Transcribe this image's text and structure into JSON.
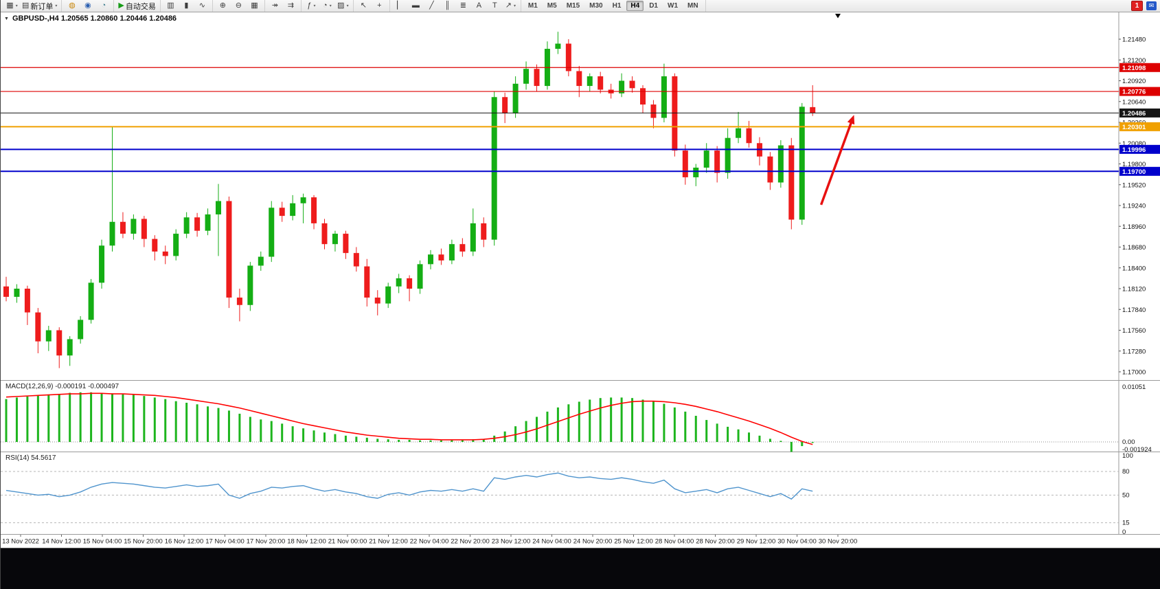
{
  "toolbar": {
    "groups": [
      {
        "name": "file",
        "items": [
          {
            "name": "new-chart-button",
            "glyph": "▦",
            "dropdown": true
          },
          {
            "name": "new-order-button",
            "glyph": "▤",
            "label": "新订单",
            "dropdown": true
          }
        ]
      },
      {
        "name": "services",
        "items": [
          {
            "name": "signals-icon-button",
            "glyph": "◍",
            "glyph_color": "#c8860a"
          },
          {
            "name": "market-icon-button",
            "glyph": "◉",
            "glyph_color": "#2b5fb0"
          },
          {
            "name": "vps-icon-button",
            "glyph": "◔",
            "glyph_color": "#3a7a8c"
          }
        ]
      },
      {
        "name": "autotrade",
        "items": [
          {
            "name": "autotrading-button",
            "glyph": "▶",
            "glyph_color": "#189c18",
            "label": "自动交易"
          }
        ]
      },
      {
        "name": "chart-type",
        "items": [
          {
            "name": "bar-chart-button",
            "glyph": "▥"
          },
          {
            "name": "candle-chart-button",
            "glyph": "▮"
          },
          {
            "name": "line-chart-button",
            "glyph": "∿"
          }
        ]
      },
      {
        "name": "zoom",
        "items": [
          {
            "name": "zoom-in-button",
            "glyph": "⊕"
          },
          {
            "name": "zoom-out-button",
            "glyph": "⊖"
          },
          {
            "name": "tile-windows-button",
            "glyph": "▦"
          }
        ]
      },
      {
        "name": "scroll",
        "items": [
          {
            "name": "auto-scroll-button",
            "glyph": "↠"
          },
          {
            "name": "chart-shift-button",
            "glyph": "⇉"
          }
        ]
      },
      {
        "name": "tools",
        "items": [
          {
            "name": "indicators-button",
            "glyph": "ƒ",
            "dropdown": true
          },
          {
            "name": "periods-button",
            "glyph": "◔",
            "dropdown": true
          },
          {
            "name": "templates-button",
            "glyph": "▨",
            "dropdown": true
          }
        ]
      },
      {
        "name": "cursor",
        "items": [
          {
            "name": "cursor-button",
            "glyph": "↖"
          },
          {
            "name": "crosshair-button",
            "glyph": "+"
          }
        ]
      },
      {
        "name": "draw",
        "items": [
          {
            "name": "vline-button",
            "glyph": "▏"
          },
          {
            "name": "hline-button",
            "glyph": "▬"
          },
          {
            "name": "trendline-button",
            "glyph": "╱"
          },
          {
            "name": "channel-button",
            "glyph": "║"
          },
          {
            "name": "fibonacci-button",
            "glyph": "≣"
          },
          {
            "name": "text-button",
            "glyph": "A"
          },
          {
            "name": "label-button",
            "glyph": "T"
          },
          {
            "name": "arrows-button",
            "glyph": "↗",
            "dropdown": true
          }
        ]
      },
      {
        "name": "timeframes",
        "items": []
      }
    ],
    "timeframes": [
      "M1",
      "M5",
      "M15",
      "M30",
      "H1",
      "H4",
      "D1",
      "W1",
      "MN"
    ],
    "active_timeframe": "H4",
    "badge_count": "1",
    "corner_icon_glyph": "✉"
  },
  "chart": {
    "collapse_glyph": "▼",
    "colors": {
      "bull": "#14ae14",
      "bear": "#ee1c1c",
      "axis_line": "#9a9a9a",
      "tick_text": "#111111"
    }
  },
  "chart_data": [
    {
      "type": "candlestick",
      "symbol": "GBPUSD-",
      "timeframe": "H4",
      "title": "GBPUSD-,H4  1.20565 1.20860 1.20446 1.20486",
      "open": 1.20565,
      "high": 1.2086,
      "low": 1.20446,
      "close": 1.20486,
      "ylim": [
        1.17,
        1.2148
      ],
      "y_ticks": [
        "1.21480",
        "1.21200",
        "1.20920",
        "1.20640",
        "1.20360",
        "1.20080",
        "1.19800",
        "1.19520",
        "1.19240",
        "1.18960",
        "1.18680",
        "1.18400",
        "1.18120",
        "1.17840",
        "1.17560",
        "1.17280",
        "1.17000"
      ],
      "x_labels": [
        "13 Nov 2022",
        "14 Nov 12:00",
        "15 Nov 04:00",
        "15 Nov 20:00",
        "16 Nov 12:00",
        "17 Nov 04:00",
        "17 Nov 20:00",
        "18 Nov 12:00",
        "21 Nov 00:00",
        "21 Nov 12:00",
        "22 Nov 04:00",
        "22 Nov 20:00",
        "23 Nov 12:00",
        "24 Nov 04:00",
        "24 Nov 20:00",
        "25 Nov 12:00",
        "28 Nov 04:00",
        "28 Nov 20:00",
        "29 Nov 12:00",
        "30 Nov 04:00",
        "30 Nov 20:00"
      ],
      "hlines": [
        {
          "price": 1.21098,
          "label": "1.21098",
          "color": "#dd0000",
          "width": 1.2
        },
        {
          "price": 1.20776,
          "label": "1.20776",
          "color": "#dd0000",
          "width": 1.2
        },
        {
          "price": 1.20486,
          "label": "1.20486",
          "color": "#151515",
          "width": 1
        },
        {
          "price": 1.20301,
          "label": "1.20301",
          "color": "#f0a000",
          "width": 2
        },
        {
          "price": 1.19996,
          "label": "1.19996",
          "color": "#0000cc",
          "width": 2
        },
        {
          "price": 1.197,
          "label": "1.19700",
          "color": "#0000cc",
          "width": 2
        }
      ],
      "ohlc": [
        [
          1.1815,
          1.1828,
          1.1795,
          1.1801
        ],
        [
          1.1801,
          1.1818,
          1.1793,
          1.1812
        ],
        [
          1.1812,
          1.1816,
          1.1763,
          1.178
        ],
        [
          1.178,
          1.1786,
          1.1725,
          1.1741
        ],
        [
          1.1741,
          1.1762,
          1.1728,
          1.1756
        ],
        [
          1.1756,
          1.176,
          1.1705,
          1.1722
        ],
        [
          1.1722,
          1.1748,
          1.1708,
          1.1744
        ],
        [
          1.1744,
          1.1775,
          1.1738,
          1.177
        ],
        [
          1.177,
          1.1825,
          1.1765,
          1.182
        ],
        [
          1.182,
          1.1878,
          1.1812,
          1.187
        ],
        [
          1.187,
          1.203,
          1.1862,
          1.1902
        ],
        [
          1.1902,
          1.1915,
          1.188,
          1.1886
        ],
        [
          1.1886,
          1.1912,
          1.1878,
          1.1906
        ],
        [
          1.1906,
          1.191,
          1.1868,
          1.1879
        ],
        [
          1.1879,
          1.1884,
          1.185,
          1.1862
        ],
        [
          1.1862,
          1.187,
          1.1845,
          1.1856
        ],
        [
          1.1856,
          1.1892,
          1.185,
          1.1886
        ],
        [
          1.1886,
          1.1915,
          1.188,
          1.1908
        ],
        [
          1.1908,
          1.1914,
          1.1882,
          1.189
        ],
        [
          1.189,
          1.192,
          1.1884,
          1.1912
        ],
        [
          1.1912,
          1.1953,
          1.1856,
          1.193
        ],
        [
          1.193,
          1.1936,
          1.1786,
          1.18
        ],
        [
          1.18,
          1.1812,
          1.1768,
          1.179
        ],
        [
          1.179,
          1.1848,
          1.1782,
          1.1843
        ],
        [
          1.1843,
          1.1862,
          1.1836,
          1.1855
        ],
        [
          1.1855,
          1.193,
          1.1848,
          1.1921
        ],
        [
          1.1921,
          1.1929,
          1.1902,
          1.191
        ],
        [
          1.191,
          1.1938,
          1.1904,
          1.1927
        ],
        [
          1.1927,
          1.194,
          1.19,
          1.1935
        ],
        [
          1.1935,
          1.1938,
          1.1892,
          1.19
        ],
        [
          1.19,
          1.1906,
          1.1865,
          1.1872
        ],
        [
          1.1872,
          1.189,
          1.1862,
          1.1886
        ],
        [
          1.1886,
          1.189,
          1.1852,
          1.186
        ],
        [
          1.186,
          1.1868,
          1.1835,
          1.1842
        ],
        [
          1.1842,
          1.1852,
          1.1788,
          1.18
        ],
        [
          1.18,
          1.181,
          1.1776,
          1.1792
        ],
        [
          1.1792,
          1.182,
          1.1786,
          1.1815
        ],
        [
          1.1815,
          1.1832,
          1.1806,
          1.1826
        ],
        [
          1.1826,
          1.183,
          1.1795,
          1.1812
        ],
        [
          1.1812,
          1.185,
          1.1805,
          1.1845
        ],
        [
          1.1845,
          1.1864,
          1.1838,
          1.1858
        ],
        [
          1.1858,
          1.1866,
          1.1844,
          1.185
        ],
        [
          1.185,
          1.1878,
          1.1845,
          1.1872
        ],
        [
          1.1872,
          1.188,
          1.1855,
          1.1862
        ],
        [
          1.1862,
          1.192,
          1.1856,
          1.19
        ],
        [
          1.19,
          1.1908,
          1.1868,
          1.1878
        ],
        [
          1.1878,
          1.2078,
          1.187,
          1.207
        ],
        [
          1.207,
          1.2076,
          1.2035,
          1.2048
        ],
        [
          1.2048,
          1.2098,
          1.2042,
          1.2088
        ],
        [
          1.2088,
          1.2118,
          1.208,
          1.2108
        ],
        [
          1.2108,
          1.2114,
          1.2078,
          1.2085
        ],
        [
          1.2085,
          1.2145,
          1.208,
          1.2135
        ],
        [
          1.2135,
          1.2158,
          1.2128,
          1.2142
        ],
        [
          1.2142,
          1.2148,
          1.2098,
          1.2105
        ],
        [
          1.2105,
          1.2112,
          1.207,
          1.2085
        ],
        [
          1.2085,
          1.2102,
          1.2078,
          1.2098
        ],
        [
          1.2098,
          1.2104,
          1.2075,
          1.208
        ],
        [
          1.208,
          1.2088,
          1.2068,
          1.2075
        ],
        [
          1.2075,
          1.2102,
          1.207,
          1.2092
        ],
        [
          1.2092,
          1.2098,
          1.2076,
          1.2082
        ],
        [
          1.2082,
          1.2086,
          1.2048,
          1.206
        ],
        [
          1.206,
          1.2066,
          1.2028,
          1.2042
        ],
        [
          1.2042,
          1.2115,
          1.2036,
          1.2098
        ],
        [
          1.2098,
          1.2102,
          1.199,
          1.1998
        ],
        [
          1.1998,
          1.2006,
          1.1952,
          1.1962
        ],
        [
          1.1962,
          1.198,
          1.195,
          1.1975
        ],
        [
          1.1975,
          1.2008,
          1.1968,
          1.1998
        ],
        [
          1.1998,
          1.2004,
          1.1955,
          1.1968
        ],
        [
          1.1968,
          1.2028,
          1.196,
          1.2015
        ],
        [
          1.2015,
          1.205,
          1.2008,
          1.2028
        ],
        [
          1.2028,
          1.2038,
          1.2002,
          1.2008
        ],
        [
          1.2008,
          1.2016,
          1.1978,
          1.199
        ],
        [
          1.199,
          1.1996,
          1.1945,
          1.1955
        ],
        [
          1.1955,
          1.2012,
          1.1948,
          1.2005
        ],
        [
          1.2005,
          1.2015,
          1.1892,
          1.1905
        ],
        [
          1.1905,
          1.2062,
          1.1898,
          1.2057
        ],
        [
          1.20565,
          1.2086,
          1.20446,
          1.20486
        ]
      ]
    },
    {
      "type": "bar",
      "name": "MACD",
      "label": "MACD(12,26,9) -0.000191 -0.000497",
      "y_ticks": [
        "0.01051",
        "0.00",
        "-0.001924"
      ],
      "colors": {
        "histogram": "#1db51d",
        "signal": "#ff0000"
      },
      "values": [
        0.0082,
        0.0085,
        0.0087,
        0.0089,
        0.0091,
        0.0092,
        0.0094,
        0.0095,
        0.0095,
        0.0094,
        0.0093,
        0.0091,
        0.009,
        0.0088,
        0.0085,
        0.0082,
        0.0078,
        0.0075,
        0.0072,
        0.0068,
        0.0065,
        0.006,
        0.0054,
        0.0048,
        0.0043,
        0.004,
        0.0035,
        0.003,
        0.0026,
        0.0022,
        0.0018,
        0.0015,
        0.0012,
        0.001,
        0.0008,
        0.0006,
        0.0005,
        0.0004,
        0.0004,
        0.0003,
        0.0003,
        0.0003,
        0.0004,
        0.0004,
        0.0005,
        0.0005,
        0.0012,
        0.002,
        0.003,
        0.004,
        0.0048,
        0.0058,
        0.0066,
        0.0072,
        0.0077,
        0.0081,
        0.0084,
        0.0085,
        0.0085,
        0.0084,
        0.0081,
        0.0077,
        0.0073,
        0.0066,
        0.0058,
        0.005,
        0.0042,
        0.0035,
        0.0029,
        0.0024,
        0.0018,
        0.0012,
        0.0006,
        0.0002,
        -0.0019,
        -0.0008,
        -0.000191
      ],
      "signal": [
        0.0086,
        0.0087,
        0.0088,
        0.0089,
        0.009,
        0.0091,
        0.0092,
        0.0092,
        0.0093,
        0.0093,
        0.0092,
        0.0092,
        0.0091,
        0.009,
        0.0089,
        0.0087,
        0.0085,
        0.0082,
        0.0079,
        0.0076,
        0.0073,
        0.0069,
        0.0065,
        0.006,
        0.0055,
        0.005,
        0.0045,
        0.004,
        0.0035,
        0.0031,
        0.0027,
        0.0023,
        0.0019,
        0.0016,
        0.0013,
        0.0011,
        0.0009,
        0.0007,
        0.0006,
        0.0005,
        0.0005,
        0.0004,
        0.0004,
        0.0004,
        0.0004,
        0.0005,
        0.0007,
        0.001,
        0.0014,
        0.0019,
        0.0025,
        0.0032,
        0.0039,
        0.0046,
        0.0053,
        0.0059,
        0.0065,
        0.007,
        0.0074,
        0.0077,
        0.0078,
        0.0078,
        0.0077,
        0.0075,
        0.0072,
        0.0068,
        0.0063,
        0.0058,
        0.0052,
        0.0046,
        0.004,
        0.0033,
        0.0026,
        0.0018,
        0.0009,
        0.0001,
        -0.000497
      ]
    },
    {
      "type": "line",
      "name": "RSI",
      "label": "RSI(14) 54.5617",
      "ylim": [
        0,
        100
      ],
      "levels": [
        80,
        50,
        15
      ],
      "y_ticks": [
        "100",
        "80",
        "50",
        "15",
        "0"
      ],
      "color": "#4f94cd",
      "values": [
        56,
        54,
        52,
        50,
        51,
        48,
        50,
        54,
        60,
        64,
        66,
        65,
        64,
        62,
        60,
        59,
        61,
        63,
        61,
        62,
        64,
        50,
        46,
        52,
        55,
        60,
        59,
        61,
        62,
        58,
        55,
        57,
        54,
        52,
        48,
        46,
        51,
        53,
        50,
        54,
        56,
        55,
        57,
        55,
        58,
        55,
        72,
        70,
        73,
        75,
        73,
        76,
        78,
        74,
        72,
        73,
        71,
        70,
        72,
        70,
        67,
        65,
        69,
        58,
        53,
        55,
        57,
        53,
        58,
        60,
        56,
        52,
        48,
        52,
        45,
        58,
        55
      ]
    }
  ],
  "annotations": {
    "trend_arrow": {
      "from_bar": 76.8,
      "from_price": 1.1925,
      "to_bar": 79.9,
      "to_price": 1.2046,
      "color": "#e81010"
    },
    "current_bar_marker": {
      "x_label_index": 20
    }
  }
}
